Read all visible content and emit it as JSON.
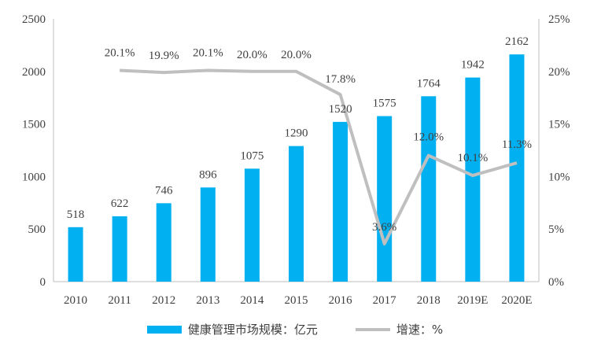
{
  "chart_data": {
    "type": "bar+line",
    "categories": [
      "2010",
      "2011",
      "2012",
      "2013",
      "2014",
      "2015",
      "2016",
      "2017",
      "2018",
      "2019E",
      "2020E"
    ],
    "series": [
      {
        "name": "健康管理市场规模：亿元",
        "type": "bar",
        "axis": "left",
        "color": "#00B0F0",
        "values": [
          518,
          622,
          746,
          896,
          1075,
          1290,
          1520,
          1575,
          1764,
          1942,
          2162
        ],
        "labels": [
          "518",
          "622",
          "746",
          "896",
          "1075",
          "1290",
          "1520",
          "1575",
          "1764",
          "1942",
          "2162"
        ]
      },
      {
        "name": "增速：%",
        "type": "line",
        "axis": "right",
        "color": "#BFBFBF",
        "values": [
          null,
          20.1,
          19.9,
          20.1,
          20.0,
          20.0,
          17.8,
          3.6,
          12.0,
          10.1,
          11.3
        ],
        "labels": [
          "",
          "20.1%",
          "19.9%",
          "20.1%",
          "20.0%",
          "20.0%",
          "17.8%",
          "3.6%",
          "12.0%",
          "10.1%",
          "11.3%"
        ]
      }
    ],
    "ylim_left": [
      0,
      2500
    ],
    "yticks_left": [
      "0",
      "500",
      "1000",
      "1500",
      "2000",
      "2500"
    ],
    "ylim_right": [
      0,
      25
    ],
    "yticks_right": [
      "0%",
      "5%",
      "10%",
      "15%",
      "20%",
      "25%"
    ],
    "grid": false,
    "legend_position": "bottom"
  },
  "legend": {
    "bar_label": "健康管理市场规模：亿元",
    "line_label": "增速：%"
  }
}
